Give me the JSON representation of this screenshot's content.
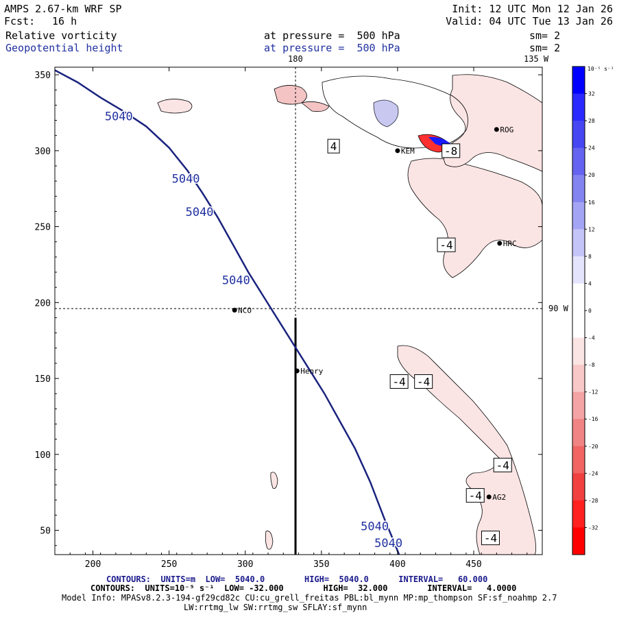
{
  "header": {
    "model": "AMPS 2.67-km WRF SP",
    "forecast_label": "Fcst:",
    "forecast_value": "16 h",
    "init": "Init: 12 UTC Mon 12 Jan 26",
    "valid": "Valid: 04 UTC Tue 13 Jan 26",
    "field1": "Relative vorticity",
    "field1_level": "at pressure =  500 hPa",
    "field1_sm": "sm= 2",
    "field2": "Geopotential height",
    "field2_level": "at pressure =  500 hPa",
    "field2_sm": "sm= 2",
    "top_label_180": "180",
    "top_label_135w": "135 W",
    "right_label_90w": "90 W"
  },
  "stations": [
    {
      "name": "NCO",
      "x": 293,
      "y": 195
    },
    {
      "name": "Henry",
      "x": 334,
      "y": 155
    },
    {
      "name": "HRC",
      "x": 467,
      "y": 239
    },
    {
      "name": "ROG",
      "x": 465,
      "y": 314
    },
    {
      "name": "KEM",
      "x": 400,
      "y": 300
    },
    {
      "name": "AG2",
      "x": 460,
      "y": 72
    }
  ],
  "contour_labels": {
    "height": [
      {
        "text": "5040",
        "x": 217,
        "y": 320
      },
      {
        "text": "5040",
        "x": 261,
        "y": 279
      },
      {
        "text": "5040",
        "x": 270,
        "y": 257
      },
      {
        "text": "5040",
        "x": 294,
        "y": 212
      },
      {
        "text": "5040",
        "x": 385,
        "y": 50
      },
      {
        "text": "5040",
        "x": 394,
        "y": 39
      }
    ],
    "vorticity": [
      {
        "text": "4",
        "x": 358,
        "y": 303
      },
      {
        "text": "-8",
        "x": 435,
        "y": 300
      },
      {
        "text": "-4",
        "x": 432,
        "y": 238
      },
      {
        "text": "-4",
        "x": 401,
        "y": 148
      },
      {
        "text": "-4",
        "x": 417,
        "y": 148
      },
      {
        "text": "-4",
        "x": 469,
        "y": 93
      },
      {
        "text": "-4",
        "x": 451,
        "y": 73
      },
      {
        "text": "-4",
        "x": 461,
        "y": 45
      }
    ]
  },
  "chart_data": {
    "type": "contour",
    "title": "Relative vorticity and Geopotential height at 500 hPa",
    "xlim": [
      175,
      495
    ],
    "ylim": [
      34,
      355
    ],
    "x_ticks": [
      200,
      250,
      300,
      350,
      400,
      450
    ],
    "y_ticks": [
      50,
      100,
      150,
      200,
      250,
      300,
      350
    ],
    "x_tick_labels": [
      "200",
      "250",
      "300",
      "350",
      "400",
      "450"
    ],
    "y_tick_labels": [
      "50",
      "100",
      "150",
      "200",
      "250",
      "300",
      "350"
    ],
    "height_contour_5040": [
      [
        175,
        353
      ],
      [
        190,
        345
      ],
      [
        205,
        335
      ],
      [
        220,
        326
      ],
      [
        235,
        316
      ],
      [
        250,
        302
      ],
      [
        262,
        287
      ],
      [
        272,
        272
      ],
      [
        282,
        256
      ],
      [
        292,
        238
      ],
      [
        302,
        220
      ],
      [
        312,
        204
      ],
      [
        322,
        188
      ],
      [
        332,
        172
      ],
      [
        342,
        156
      ],
      [
        352,
        140
      ],
      [
        362,
        122
      ],
      [
        372,
        104
      ],
      [
        382,
        82
      ],
      [
        392,
        56
      ],
      [
        397,
        44
      ],
      [
        401,
        34
      ]
    ],
    "dashed_lines": {
      "x": 333,
      "y": 196
    },
    "vertical_solid_line": {
      "x": 333,
      "y_from": 34,
      "y_to": 190
    },
    "colorbar": {
      "unit": "10⁻⁵ s⁻¹",
      "levels": [
        "32",
        "28",
        "24",
        "20",
        "16",
        "12",
        "8",
        "4",
        "0",
        "-4",
        "-8",
        "-12",
        "-16",
        "-20",
        "-24",
        "-28",
        "-32"
      ],
      "colors": [
        "#0000ff",
        "#2a2aff",
        "#4646f2",
        "#6464f0",
        "#8484f0",
        "#a4a4f4",
        "#c4c4f8",
        "#e4e4fc",
        "#ffffff",
        "#ffffff",
        "#fae4e4",
        "#f8c8c8",
        "#f4a4a4",
        "#f08484",
        "#f06464",
        "#f04040",
        "#ff2020",
        "#ff0000"
      ]
    }
  },
  "footer": {
    "line1_a": "CONTOURS:  UNITS=m  LOW=  5040.0        HIGH=  5040.0      INTERVAL=   60.000",
    "line2_a": "CONTOURS:  UNITS=10⁻⁵ s⁻¹  LOW= -32.000        HIGH=  32.000        INTERVAL=   4.0000",
    "line3": "Model Info: MPASv8.2.3-194-gf29cd82c CU:cu_grell_freitas PBL:bl_mynn MP:mp_thompson SF:sf_noahmp 2.7",
    "line4": "LW:rrtmg_lw SW:rrtmg_sw SFLAY:sf_mynn"
  }
}
